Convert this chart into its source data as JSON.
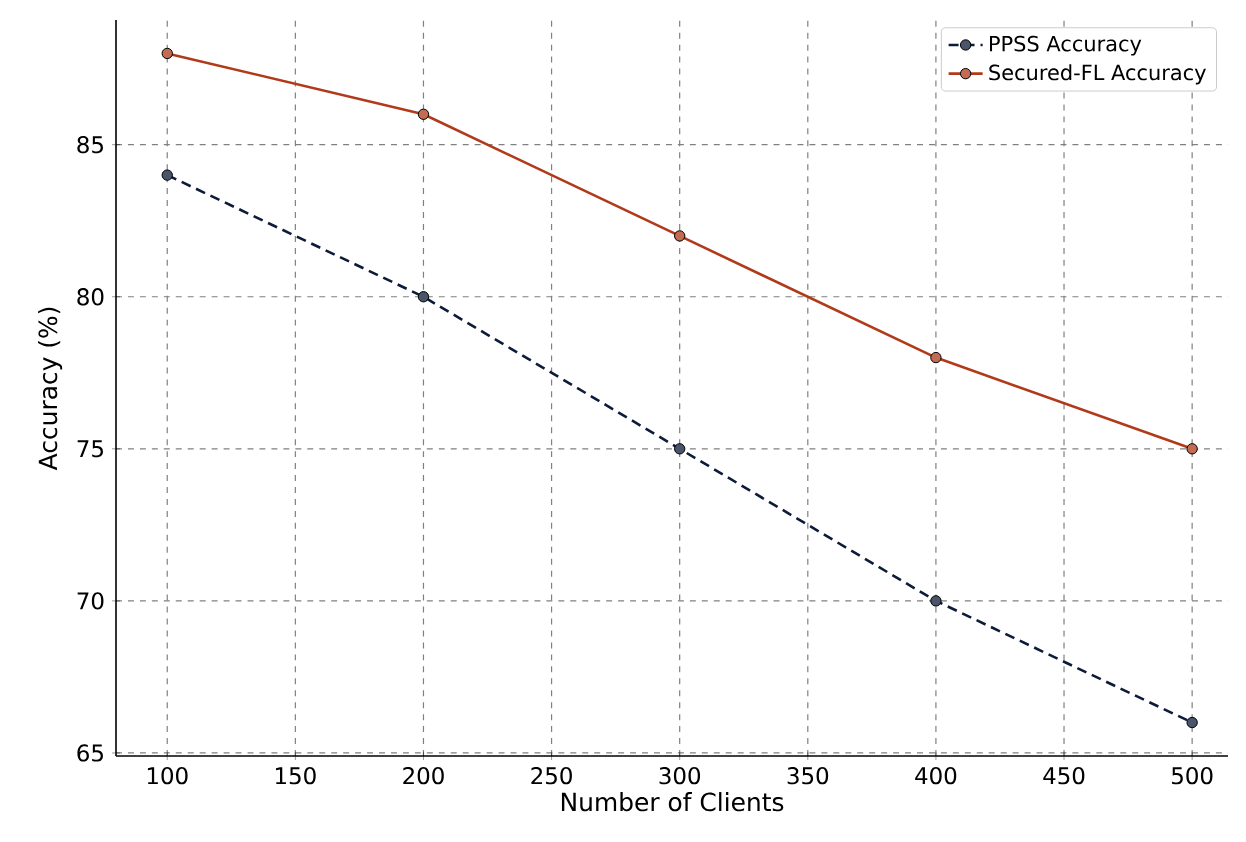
{
  "chart_data": {
    "type": "line",
    "xlabel": "Number of Clients",
    "ylabel": "Accuracy (%)",
    "x": [
      100,
      200,
      300,
      400,
      500
    ],
    "series": [
      {
        "name": "PPSS Accuracy",
        "color": "#0d1b3a",
        "line_style": "dashed",
        "values": [
          84,
          80,
          75,
          70,
          66
        ]
      },
      {
        "name": "Secured-FL Accuracy",
        "color": "#b03a1a",
        "line_style": "solid",
        "values": [
          88,
          86,
          82,
          78,
          75
        ]
      }
    ],
    "xlim": [
      80,
      514
    ],
    "ylim": [
      64.9,
      89.1
    ],
    "xticks": [
      100,
      150,
      200,
      250,
      300,
      350,
      400,
      450,
      500
    ],
    "yticks": [
      65,
      70,
      75,
      80,
      85
    ],
    "grid": true,
    "legend": "top right",
    "marker": "circle"
  }
}
